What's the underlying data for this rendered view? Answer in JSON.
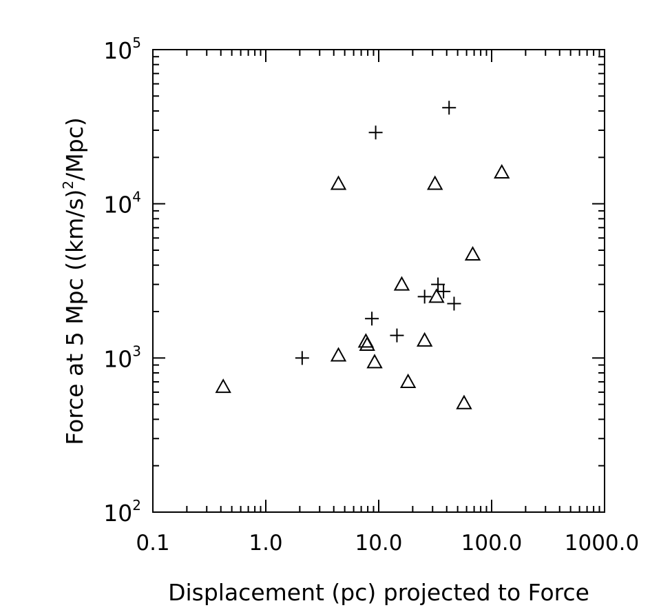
{
  "chart_data": {
    "type": "scatter",
    "title": "",
    "xlabel": "Displacement (pc) projected to Force",
    "ylabel_prefix": "Force at 5 Mpc ((km/s)",
    "ylabel_sup": "2",
    "ylabel_suffix": "/Mpc)",
    "x_scale": "log",
    "y_scale": "log",
    "xlim": [
      0.1,
      1000
    ],
    "ylim": [
      100,
      100000
    ],
    "x_tick_labels": [
      "0.1",
      "1.0",
      "10.0",
      "100.0",
      "1000.0"
    ],
    "x_tick_values": [
      0.1,
      1,
      10,
      100,
      1000
    ],
    "y_tick_labels": [
      {
        "base": "10",
        "exp": "2"
      },
      {
        "base": "10",
        "exp": "3"
      },
      {
        "base": "10",
        "exp": "4"
      },
      {
        "base": "10",
        "exp": "5"
      }
    ],
    "y_tick_values": [
      100,
      1000,
      10000,
      100000
    ],
    "grid": false,
    "series": [
      {
        "marker": "plus",
        "points": [
          [
            2.1,
            1000
          ],
          [
            8.7,
            1800
          ],
          [
            9.4,
            29000
          ],
          [
            14.5,
            1400
          ],
          [
            25.5,
            2500
          ],
          [
            33.5,
            3000
          ],
          [
            37.5,
            2700
          ],
          [
            42.0,
            42000
          ],
          [
            46.5,
            2250
          ]
        ]
      },
      {
        "marker": "triangle",
        "points": [
          [
            0.42,
            650
          ],
          [
            4.4,
            1040
          ],
          [
            4.4,
            13500
          ],
          [
            7.7,
            1280
          ],
          [
            7.9,
            1220
          ],
          [
            9.2,
            940
          ],
          [
            16.0,
            3000
          ],
          [
            18.2,
            700
          ],
          [
            25.5,
            1300
          ],
          [
            31.5,
            13500
          ],
          [
            32.5,
            2500
          ],
          [
            57.0,
            510
          ],
          [
            68.0,
            4700
          ],
          [
            123.0,
            16000
          ]
        ]
      }
    ]
  }
}
